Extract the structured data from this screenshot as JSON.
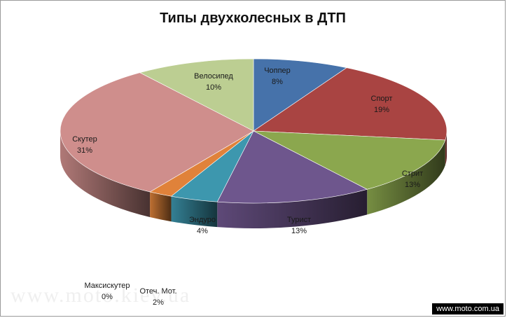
{
  "chart_data": {
    "type": "pie",
    "title": "Типы двухколесных в ДТП",
    "slices": [
      {
        "name": "Чоппер",
        "label": "8%",
        "value": 8,
        "color": "#4672AA"
      },
      {
        "name": "Спорт",
        "label": "19%",
        "value": 19,
        "color": "#A94442"
      },
      {
        "name": "Стрит",
        "label": "13%",
        "value": 13,
        "color": "#8BA74E"
      },
      {
        "name": "Турист",
        "label": "13%",
        "value": 13,
        "color": "#6E568D"
      },
      {
        "name": "Эндуро",
        "label": "4%",
        "value": 4,
        "color": "#3D97AE"
      },
      {
        "name": "Отеч. Мот.",
        "label": "2%",
        "value": 2,
        "color": "#E0823A"
      },
      {
        "name": "Максискутер",
        "label": "0%",
        "value": 0,
        "color": "#A9B8D6"
      },
      {
        "name": "Скутер",
        "label": "31%",
        "value": 31,
        "color": "#CF8E8C"
      },
      {
        "name": "Велосипед",
        "label": "10%",
        "value": 10,
        "color": "#BCCE92"
      }
    ]
  },
  "watermark": "www.moto.kiev.ua",
  "source": "www.moto.com.ua"
}
